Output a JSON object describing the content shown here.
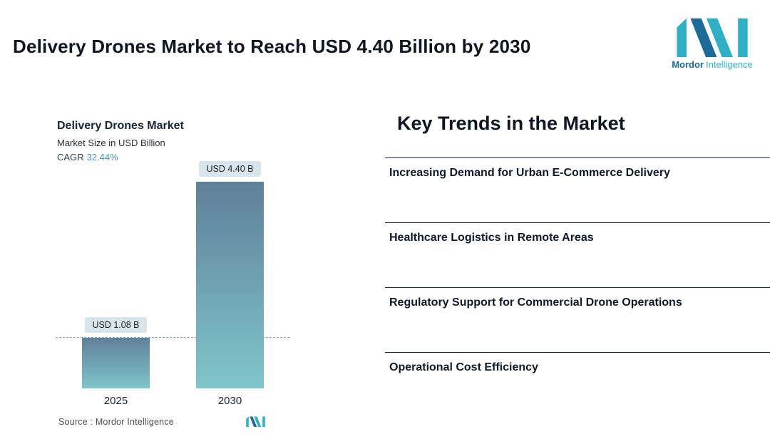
{
  "header": {
    "title": "Delivery Drones Market to Reach USD 4.40 Billion by 2030",
    "brand": {
      "primary": "Mordor",
      "secondary": "Intelligence"
    }
  },
  "chart_data": {
    "type": "bar",
    "title": "Delivery Drones Market",
    "subtitle": "Market Size in USD Billion",
    "cagr_label": "CAGR",
    "cagr_value": "32.44%",
    "categories": [
      "2025",
      "2030"
    ],
    "values": [
      1.08,
      4.4
    ],
    "value_labels": [
      "USD 1.08 B",
      "USD 4.40 B"
    ],
    "ylim": [
      0,
      4.4
    ],
    "grid": false,
    "reference_line_at": 1.08,
    "source_label": "Source :  Mordor Intelligence",
    "colors": {
      "bar_top": "#60809a",
      "bar_bottom": "#7fc5ca",
      "chip_bg": "#d8e6ec",
      "dash_line": "#7aa9bd",
      "cagr_accent": "#4a90bf",
      "brand_dark": "#1d6b96",
      "brand_teal": "#31b0c5"
    }
  },
  "trends": {
    "heading": "Key Trends in the Market",
    "items": [
      "Increasing Demand for Urban E-Commerce Delivery",
      "Healthcare Logistics in Remote Areas",
      "Regulatory Support for Commercial Drone Operations",
      "Operational Cost Efficiency"
    ]
  }
}
